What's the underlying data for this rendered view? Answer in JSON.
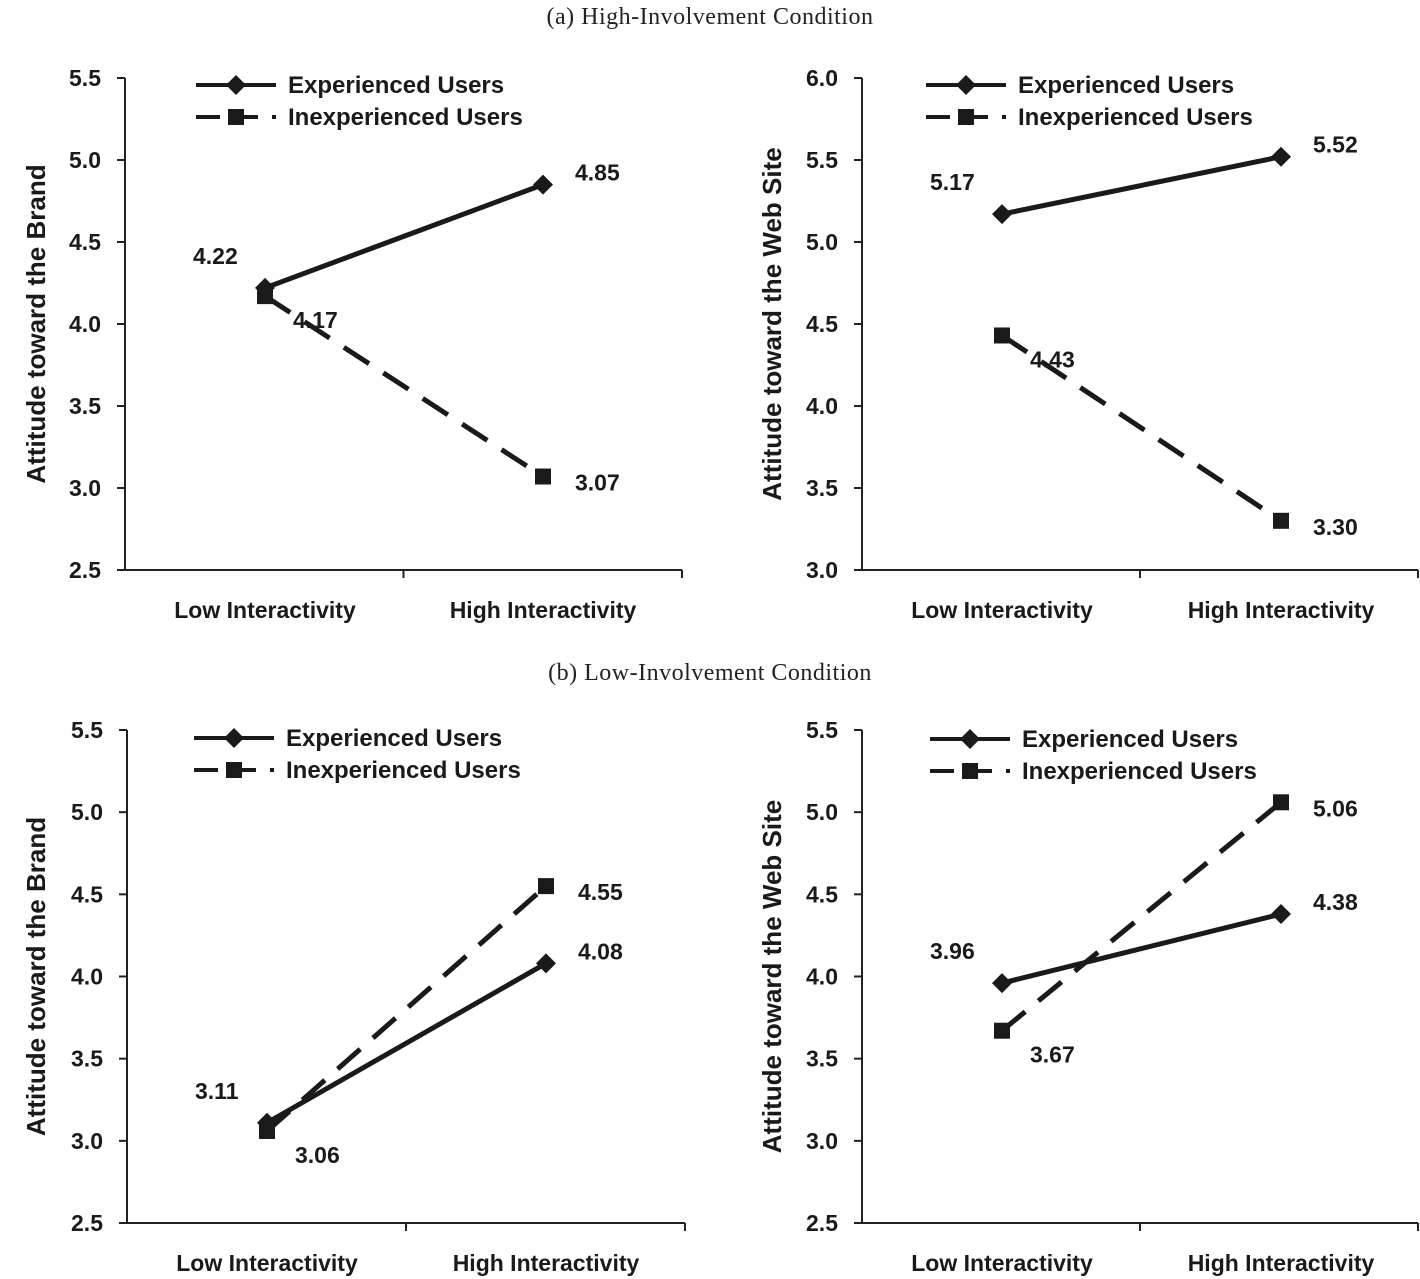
{
  "sections": {
    "a_title": "(a) High-Involvement Condition",
    "b_title": "(b) Low-Involvement Condition"
  },
  "chart_data": [
    {
      "type": "line",
      "section": "a",
      "ylabel": "Attitude toward the Brand",
      "categories": [
        "Low Interactivity",
        "High Interactivity"
      ],
      "ylim": [
        2.5,
        5.5
      ],
      "yticks": [
        "2.5",
        "3.0",
        "3.5",
        "4.0",
        "4.5",
        "5.0",
        "5.5"
      ],
      "legend_position": "top-left",
      "series": [
        {
          "name": "Experienced Users",
          "style": "solid",
          "marker": "diamond",
          "values": [
            4.22,
            4.85
          ],
          "labels": [
            "4.22",
            "4.85"
          ]
        },
        {
          "name": "Inexperienced Users",
          "style": "dashed",
          "marker": "square",
          "values": [
            4.17,
            3.07
          ],
          "labels": [
            "4.17",
            "3.07"
          ]
        }
      ]
    },
    {
      "type": "line",
      "section": "a",
      "ylabel": "Attitude toward the Web Site",
      "categories": [
        "Low Interactivity",
        "High Interactivity"
      ],
      "ylim": [
        3.0,
        6.0
      ],
      "yticks": [
        "3.0",
        "3.5",
        "4.0",
        "4.5",
        "5.0",
        "5.5",
        "6.0"
      ],
      "legend_position": "top-left",
      "series": [
        {
          "name": "Experienced Users",
          "style": "solid",
          "marker": "diamond",
          "values": [
            5.17,
            5.52
          ],
          "labels": [
            "5.17",
            "5.52"
          ]
        },
        {
          "name": "Inexperienced Users",
          "style": "dashed",
          "marker": "square",
          "values": [
            4.43,
            3.3
          ],
          "labels": [
            "4.43",
            "3.30"
          ]
        }
      ]
    },
    {
      "type": "line",
      "section": "b",
      "ylabel": "Attitude toward the Brand",
      "categories": [
        "Low Interactivity",
        "High Interactivity"
      ],
      "ylim": [
        2.5,
        5.5
      ],
      "yticks": [
        "2.5",
        "3.0",
        "3.5",
        "4.0",
        "4.5",
        "5.0",
        "5.5"
      ],
      "legend_position": "top-left",
      "series": [
        {
          "name": "Experienced Users",
          "style": "solid",
          "marker": "diamond",
          "values": [
            3.11,
            4.08
          ],
          "labels": [
            "3.11",
            "4.08"
          ]
        },
        {
          "name": "Inexperienced Users",
          "style": "dashed",
          "marker": "square",
          "values": [
            3.06,
            4.55
          ],
          "labels": [
            "3.06",
            "4.55"
          ]
        }
      ]
    },
    {
      "type": "line",
      "section": "b",
      "ylabel": "Attitude toward the Web Site",
      "categories": [
        "Low Interactivity",
        "High Interactivity"
      ],
      "ylim": [
        2.5,
        5.5
      ],
      "yticks": [
        "2.5",
        "3.0",
        "3.5",
        "4.0",
        "4.5",
        "5.0",
        "5.5"
      ],
      "legend_position": "top-left",
      "series": [
        {
          "name": "Experienced Users",
          "style": "solid",
          "marker": "diamond",
          "values": [
            3.96,
            4.38
          ],
          "labels": [
            "3.96",
            "4.38"
          ]
        },
        {
          "name": "Inexperienced Users",
          "style": "dashed",
          "marker": "square",
          "values": [
            3.67,
            5.06
          ],
          "labels": [
            "3.67",
            "5.06"
          ]
        }
      ]
    }
  ]
}
